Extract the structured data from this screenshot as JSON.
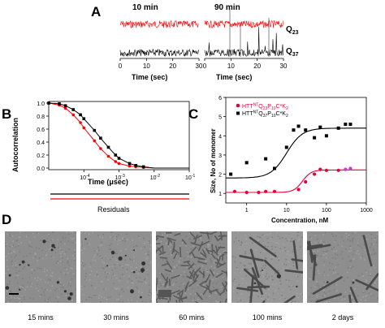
{
  "panels": {
    "A": "A",
    "B": "B",
    "C": "C",
    "D": "D"
  },
  "panel_a": {
    "titles": [
      "10 min",
      "90 min"
    ],
    "series_labels": {
      "red_sub": "23",
      "black_sub": "37",
      "letter": "Q"
    },
    "xlabels": [
      "Time (sec)",
      "Time (sec)"
    ],
    "xticks": [
      "0",
      "10",
      "20",
      "30"
    ],
    "colors": {
      "red": "#ff0000",
      "black": "#000000"
    }
  },
  "panel_b": {
    "ylabel": "Autocorrelation",
    "xlabel": "Time (μsec)",
    "residuals_label": "Residuals",
    "yticks": [
      "1.0",
      "0.8",
      "0.6",
      "0.4",
      "0.2",
      "0.0"
    ],
    "xticks": [
      "10",
      "10",
      "10",
      "10"
    ],
    "xtick_exp": [
      "-4",
      "-3",
      "-2",
      "-1"
    ]
  },
  "panel_c": {
    "ylabel": "Size, No of monomer",
    "xlabel": "Concentration, nM",
    "yticks": [
      "6",
      "5",
      "4",
      "3",
      "2",
      "1"
    ],
    "xticks": [
      "1",
      "10",
      "100",
      "1000"
    ],
    "legend": [
      {
        "base": "HTT",
        "sup1": "NT",
        "mid": "Q",
        "sub1": "23",
        "mid2": "P",
        "sub2": "10",
        "tail": "C*K",
        "sub3": "2",
        "color": "#e8003c"
      },
      {
        "base": "HTT",
        "sup1": "NT",
        "mid": "Q",
        "sub1": "37",
        "mid2": "P",
        "sub2": "10",
        "tail": "C*K",
        "sub3": "2",
        "color": "#000000"
      }
    ]
  },
  "chart_data": [
    {
      "type": "scatter",
      "panel": "B",
      "xlabel": "Time (μsec)",
      "ylabel": "Autocorrelation",
      "xscale": "log",
      "ylim": [
        0,
        1.0
      ],
      "series": [
        {
          "color": "#ff0000",
          "x": [
            1e-05,
            2e-05,
            3e-05,
            5e-05,
            8e-05,
            0.0001,
            0.0002,
            0.0003,
            0.0005,
            0.0008,
            0.001,
            0.002,
            0.003,
            0.005,
            0.01,
            0.05
          ],
          "y": [
            1.0,
            0.97,
            0.92,
            0.82,
            0.7,
            0.62,
            0.42,
            0.3,
            0.18,
            0.1,
            0.07,
            0.03,
            0.02,
            0.01,
            0.0,
            0.0
          ]
        },
        {
          "color": "#000000",
          "x": [
            1e-05,
            2e-05,
            3e-05,
            5e-05,
            8e-05,
            0.0001,
            0.0002,
            0.0003,
            0.0005,
            0.0008,
            0.001,
            0.002,
            0.003,
            0.005,
            0.01,
            0.05
          ],
          "y": [
            1.0,
            0.99,
            0.96,
            0.9,
            0.82,
            0.76,
            0.58,
            0.46,
            0.32,
            0.2,
            0.15,
            0.07,
            0.04,
            0.02,
            0.0,
            0.0
          ]
        }
      ]
    },
    {
      "type": "scatter",
      "panel": "C",
      "xlabel": "Concentration, nM",
      "ylabel": "Size, No of monomer",
      "xscale": "log",
      "ylim": [
        0.5,
        6
      ],
      "xlim": [
        0.3,
        1000
      ],
      "series": [
        {
          "name": "HTTNTQ23P10C*K2",
          "color": "#e8003c",
          "x": [
            0.5,
            1,
            2,
            3,
            5,
            20,
            30,
            50,
            70,
            100,
            200,
            300,
            400
          ],
          "y": [
            1.1,
            1.05,
            1.05,
            1.1,
            1.1,
            1.2,
            1.6,
            2.0,
            2.25,
            2.2,
            2.2,
            2.25,
            2.3
          ]
        },
        {
          "name": "HTTNTQ37P10C*K2",
          "color": "#000000",
          "x": [
            0.4,
            1,
            3,
            5,
            10,
            15,
            20,
            30,
            50,
            70,
            100,
            200,
            300,
            400
          ],
          "y": [
            2.0,
            2.6,
            2.8,
            2.3,
            3.4,
            4.3,
            4.5,
            4.3,
            3.9,
            4.45,
            4.0,
            4.4,
            4.6,
            4.6
          ]
        }
      ]
    }
  ],
  "panel_d": {
    "captions": [
      "15 mins",
      "30 mins",
      "60 mins",
      "100 mins",
      "2 days"
    ]
  }
}
